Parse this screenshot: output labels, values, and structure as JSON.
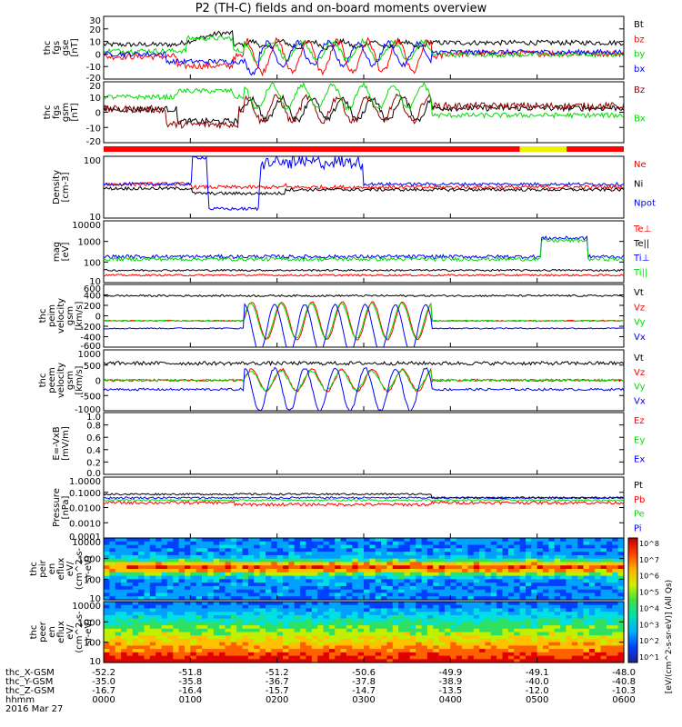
{
  "title": "P2 (TH-C) fields and on-board moments overview",
  "colors": {
    "black": "#000000",
    "red": "#ff0000",
    "green": "#00dd00",
    "blue": "#0000ff",
    "yellow": "#f0f000",
    "brown": "#8b0000"
  },
  "chart_data": {
    "type": "line",
    "x_ticks": [
      "0000",
      "0100",
      "0200",
      "0300",
      "0400",
      "0500",
      "0600"
    ],
    "footer": {
      "row_labels": [
        "thc_X-GSM",
        "thc_Y-GSM",
        "thc_Z-GSM",
        "hhmm",
        "2016 Mar 27"
      ],
      "x_gsm": [
        "-52.2",
        "-51.8",
        "-51.2",
        "-50.6",
        "-49.9",
        "-49.1",
        "-48.0"
      ],
      "y_gsm": [
        "-35.0",
        "-35.8",
        "-36.7",
        "-37.8",
        "-38.9",
        "-40.0",
        "-40.8"
      ],
      "z_gsm": [
        "-16.7",
        "-16.4",
        "-15.7",
        "-14.7",
        "-13.5",
        "-12.0",
        "-10.3"
      ]
    },
    "panels": [
      {
        "id": "fgs_gse",
        "ylabel": [
          "thc",
          "fgs",
          "gse",
          "[nT]"
        ],
        "ticks": [
          "30",
          "20",
          "10",
          "0",
          "-10",
          "-20"
        ],
        "ylim": [
          -20,
          30
        ],
        "legend": [
          {
            "name": "Bt",
            "color": "#000000"
          },
          {
            "name": "bz",
            "color": "#ff0000"
          },
          {
            "name": "by",
            "color": "#00dd00"
          },
          {
            "name": "bx",
            "color": "#0000ff"
          }
        ]
      },
      {
        "id": "fgs_gsm",
        "ylabel": [
          "thc",
          "fgs",
          "gsm",
          "[nT]"
        ],
        "ticks": [
          "20",
          "10",
          "0",
          "-10",
          "-20"
        ],
        "ylim": [
          -25,
          25
        ],
        "legend": [
          {
            "name": "Bz",
            "color": "#8b0000"
          },
          {
            "name": "Bx",
            "color": "#00dd00"
          }
        ]
      },
      {
        "id": "density",
        "ylabel": [
          "Density",
          "[cm-3]"
        ],
        "ticks": [
          "100",
          "10"
        ],
        "ylim": "log",
        "legend": [
          {
            "name": "Ne",
            "color": "#ff0000"
          },
          {
            "name": "Ni",
            "color": "#000000"
          },
          {
            "name": "Npot",
            "color": "#0000ff"
          }
        ]
      },
      {
        "id": "temp",
        "ylabel": [
          "mag",
          "[eV]"
        ],
        "ticks": [
          "10000",
          "1000",
          "100",
          "10"
        ],
        "ylim": "log",
        "legend": [
          {
            "name": "Te⊥",
            "color": "#ff0000"
          },
          {
            "name": "Te||",
            "color": "#000000"
          },
          {
            "name": "Ti⊥",
            "color": "#0000ff"
          },
          {
            "name": "Ti||",
            "color": "#00dd00"
          }
        ]
      },
      {
        "id": "peim",
        "ylabel": [
          "thc",
          "peim",
          "velocity",
          "gsm",
          "[km/s]"
        ],
        "ticks": [
          "600",
          "400",
          "200",
          "0",
          "-200",
          "-400",
          "-600"
        ],
        "ylim": [
          -600,
          600
        ],
        "legend": [
          {
            "name": "Vt",
            "color": "#000000"
          },
          {
            "name": "Vz",
            "color": "#ff0000"
          },
          {
            "name": "Vy",
            "color": "#00dd00"
          },
          {
            "name": "Vx",
            "color": "#0000ff"
          }
        ]
      },
      {
        "id": "peem",
        "ylabel": [
          "thc",
          "peem",
          "velocity",
          "gsm",
          "[km/s]"
        ],
        "ticks": [
          "1000",
          "500",
          "0",
          "-500",
          "-1000"
        ],
        "ylim": [
          -1000,
          1000
        ],
        "legend": [
          {
            "name": "Vt",
            "color": "#000000"
          },
          {
            "name": "Vz",
            "color": "#ff0000"
          },
          {
            "name": "Vy",
            "color": "#00dd00"
          },
          {
            "name": "Vx",
            "color": "#0000ff"
          }
        ]
      },
      {
        "id": "efield",
        "ylabel": [
          "E=-VxB",
          "[mV/m]"
        ],
        "ticks": [
          "1.0",
          "0.8",
          "0.6",
          "0.4",
          "0.2",
          "0.0"
        ],
        "ylim": [
          0,
          1
        ],
        "legend": [
          {
            "name": "Ez",
            "color": "#ff0000"
          },
          {
            "name": "Ey",
            "color": "#00dd00"
          },
          {
            "name": "Ex",
            "color": "#0000ff"
          }
        ]
      },
      {
        "id": "pressure",
        "ylabel": [
          "Pressure",
          "[nPa]"
        ],
        "ticks": [
          "1.0000",
          "0.1000",
          "0.0100",
          "0.0010",
          "0.0001"
        ],
        "ylim": "log",
        "legend": [
          {
            "name": "Pt",
            "color": "#000000"
          },
          {
            "name": "Pb",
            "color": "#ff0000"
          },
          {
            "name": "Pe",
            "color": "#00dd00"
          },
          {
            "name": "Pi",
            "color": "#0000ff"
          }
        ]
      },
      {
        "id": "peir",
        "ylabel": [
          "thc",
          "peir",
          "en",
          "eflux",
          "eV/",
          "(cm^2-s-",
          "sr-eV)"
        ],
        "ticks": [
          "10000",
          "1000",
          "100",
          "10"
        ],
        "ylim": "log"
      },
      {
        "id": "peer",
        "ylabel": [
          "thc",
          "peer",
          "en",
          "eflux",
          "eV/",
          "(cm^2-s-",
          "sr-eV)"
        ],
        "ticks": [
          "10000",
          "1000",
          "100",
          "10"
        ],
        "ylim": "log"
      }
    ],
    "colorbar": {
      "ticks": [
        "10^8",
        "10^7",
        "10^6",
        "10^5",
        "10^4",
        "10^3",
        "10^2",
        "10^1"
      ],
      "label": "[eV/(cm^2-s-sr-eV)] (All Qs)"
    }
  }
}
